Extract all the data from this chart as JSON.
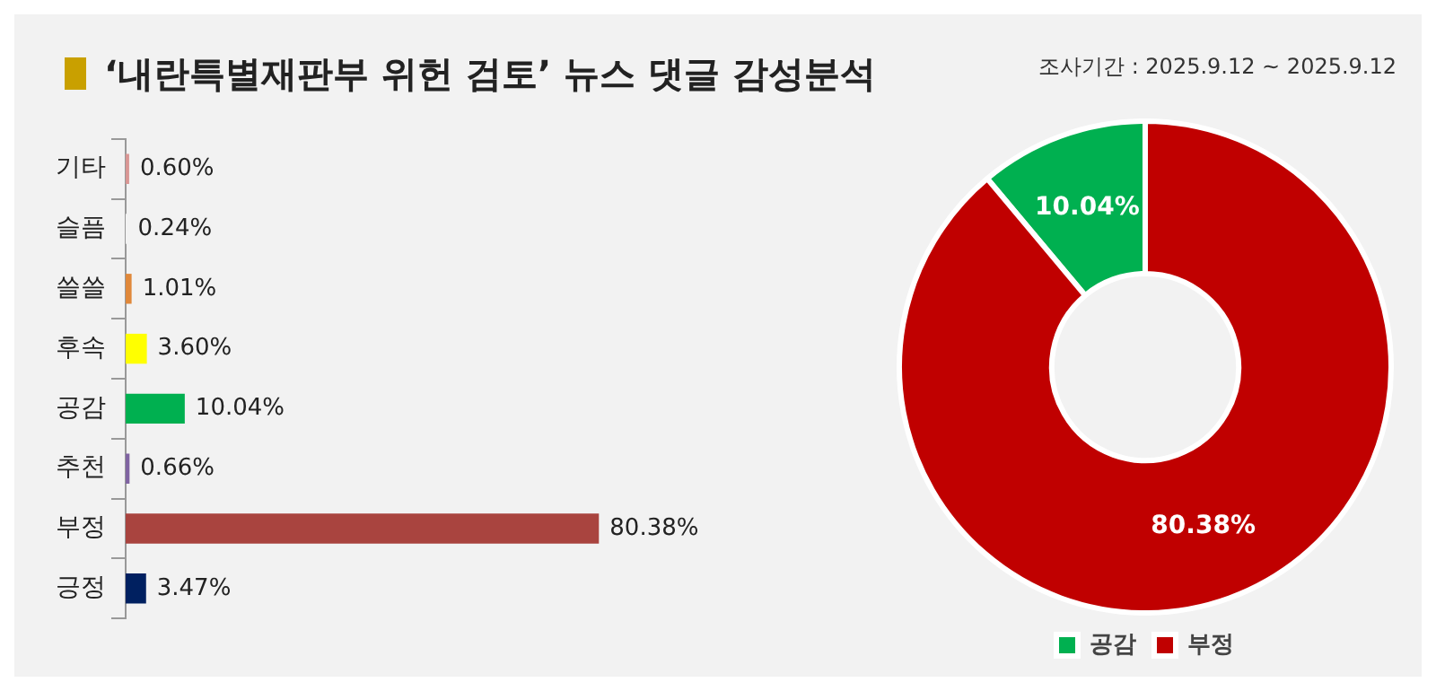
{
  "chart_data": [
    {
      "type": "bar",
      "orientation": "horizontal",
      "title": "‘내란특별재판부 위헌 검토’ 뉴스 댓글 감성분석",
      "categories": [
        "기타",
        "슬픔",
        "쓸쓸",
        "후속",
        "공감",
        "추천",
        "부정",
        "긍정"
      ],
      "values": [
        0.6,
        0.24,
        1.01,
        3.6,
        10.04,
        0.66,
        80.38,
        3.47
      ],
      "colors": [
        "#d99694",
        "#f2f2f2",
        "#e0883a",
        "#ffff00",
        "#00b050",
        "#8064a2",
        "#a9443f",
        "#002060"
      ],
      "value_labels": [
        "0.60%",
        "0.24%",
        "1.01%",
        "3.60%",
        "10.04%",
        "0.66%",
        "80.38%",
        "3.47%"
      ],
      "tick_labels": "y"
    },
    {
      "type": "donut",
      "subtitle": "조사기간 : 2025.9.12 ~ 2025.9.12",
      "categories": [
        "공감",
        "부정"
      ],
      "values": [
        10.04,
        80.38
      ],
      "colors": [
        "#00b050",
        "#c00000"
      ],
      "value_labels": [
        "10.04%",
        "80.38%"
      ],
      "legend": "bottom"
    }
  ]
}
